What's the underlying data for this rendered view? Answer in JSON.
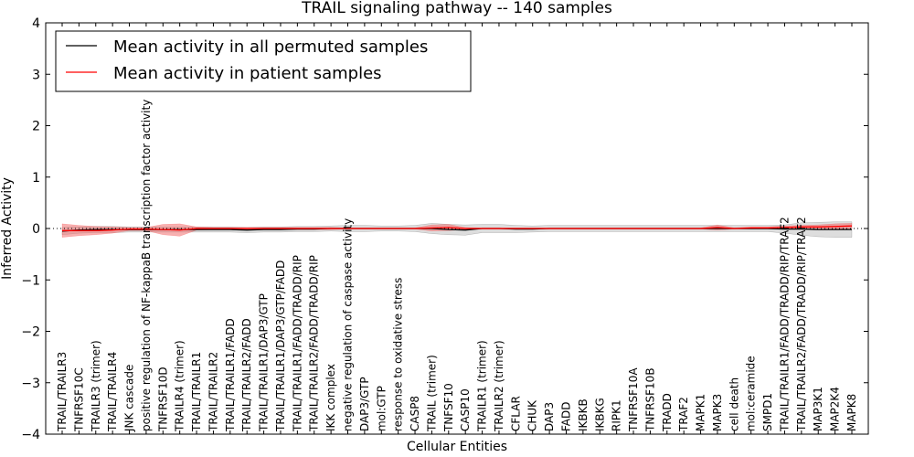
{
  "chart_data": {
    "type": "line",
    "title": "TRAIL signaling pathway -- 140 samples",
    "xlabel": "Cellular Entities",
    "ylabel": "Inferred Activity",
    "ylim": [
      -4,
      4
    ],
    "yticks": [
      -4,
      -3,
      -2,
      -1,
      0,
      1,
      2,
      3,
      4
    ],
    "ytick_labels": [
      "−4",
      "−3",
      "−2",
      "−1",
      "0",
      "1",
      "2",
      "3",
      "4"
    ],
    "grid": false,
    "legend_position": "top-left",
    "categories": [
      "TRAIL/TRAILR3",
      "TNFRSF10C",
      "TRAILR3 (trimer)",
      "TRAIL/TRAILR4",
      "JNK cascade",
      "positive regulation of NF-kappaB transcription factor activity",
      "TNFRSF10D",
      "TRAILR4 (trimer)",
      "TRAIL/TRAILR1",
      "TRAIL/TRAILR2",
      "TRAIL/TRAILR1/FADD",
      "TRAIL/TRAILR2/FADD",
      "TRAIL/TRAILR1/DAP3/GTP",
      "TRAIL/TRAILR1/DAP3/GTP/FADD",
      "TRAIL/TRAILR1/FADD/TRADD/RIP",
      "TRAIL/TRAILR2/FADD/TRADD/RIP",
      "IKK complex",
      "negative regulation of caspase activity",
      "DAP3/GTP",
      "mol:GTP",
      "response to oxidative stress",
      "CASP8",
      "TRAIL (trimer)",
      "TNFSF10",
      "CASP10",
      "TRAILR1 (trimer)",
      "TRAILR2 (trimer)",
      "CFLAR",
      "CHUK",
      "DAP3",
      "FADD",
      "IKBKB",
      "IKBKG",
      "RIPK1",
      "TNFRSF10A",
      "TNFRSF10B",
      "TRADD",
      "TRAF2",
      "MAPK1",
      "MAPK3",
      "cell death",
      "mol:ceramide",
      "SMPD1",
      "TRAIL/TRAILR1/FADD/TRADD/RIP/TRAF2",
      "TRAIL/TRAILR2/FADD/TRADD/RIP/TRAF2",
      "MAP3K1",
      "MAP2K4",
      "MAPK8"
    ],
    "series": [
      {
        "name": "Mean activity in all permuted samples",
        "color": "#000000",
        "band_color": "#bbbbbb",
        "values": [
          -0.05,
          -0.03,
          -0.02,
          -0.02,
          -0.02,
          -0.02,
          -0.02,
          -0.02,
          -0.02,
          -0.02,
          -0.02,
          -0.03,
          -0.02,
          -0.02,
          -0.01,
          -0.01,
          0,
          0,
          0,
          0,
          0,
          0,
          0,
          -0.02,
          -0.03,
          0,
          0,
          -0.01,
          -0.01,
          0,
          0,
          0,
          0,
          0,
          0,
          0,
          0,
          0,
          0,
          0,
          0,
          0,
          0,
          -0.01,
          -0.01,
          -0.02,
          -0.02,
          -0.02
        ],
        "band_half_width": [
          0.07,
          0.06,
          0.06,
          0.06,
          0.05,
          0.05,
          0.05,
          0.05,
          0.05,
          0.05,
          0.05,
          0.05,
          0.05,
          0.05,
          0.05,
          0.05,
          0.05,
          0.06,
          0.06,
          0.05,
          0.05,
          0.06,
          0.1,
          0.1,
          0.1,
          0.08,
          0.08,
          0.07,
          0.06,
          0.06,
          0.06,
          0.06,
          0.06,
          0.06,
          0.06,
          0.06,
          0.06,
          0.06,
          0.06,
          0.06,
          0.06,
          0.06,
          0.06,
          0.08,
          0.12,
          0.14,
          0.15,
          0.15
        ]
      },
      {
        "name": "Mean activity in patient samples",
        "color": "#ff0000",
        "band_color": "#f07070",
        "values": [
          -0.04,
          -0.04,
          -0.04,
          -0.03,
          -0.01,
          -0.01,
          -0.02,
          -0.03,
          0,
          0,
          0,
          0,
          0,
          0,
          0,
          0,
          0,
          0,
          0,
          0,
          0,
          0,
          0.01,
          0.02,
          0,
          0,
          0,
          0,
          0,
          0,
          0,
          0,
          0,
          0,
          0,
          0,
          0,
          0,
          0,
          0.02,
          0,
          0.01,
          0.01,
          0.02,
          0.03,
          0.03,
          0.04,
          0.05
        ],
        "band_half_width": [
          0.13,
          0.1,
          0.08,
          0.06,
          0.03,
          0.03,
          0.1,
          0.12,
          0.03,
          0.02,
          0.02,
          0.02,
          0.02,
          0.02,
          0.02,
          0.02,
          0.02,
          0.01,
          0.01,
          0.01,
          0.01,
          0.01,
          0.06,
          0.06,
          0.02,
          0.01,
          0.01,
          0.01,
          0.01,
          0.01,
          0.01,
          0.01,
          0.01,
          0.01,
          0.01,
          0.01,
          0.01,
          0.01,
          0.01,
          0.05,
          0.01,
          0.02,
          0.02,
          0.03,
          0.03,
          0.04,
          0.05,
          0.05
        ]
      }
    ],
    "reference_line": {
      "value": 0,
      "style": "dotted"
    }
  }
}
